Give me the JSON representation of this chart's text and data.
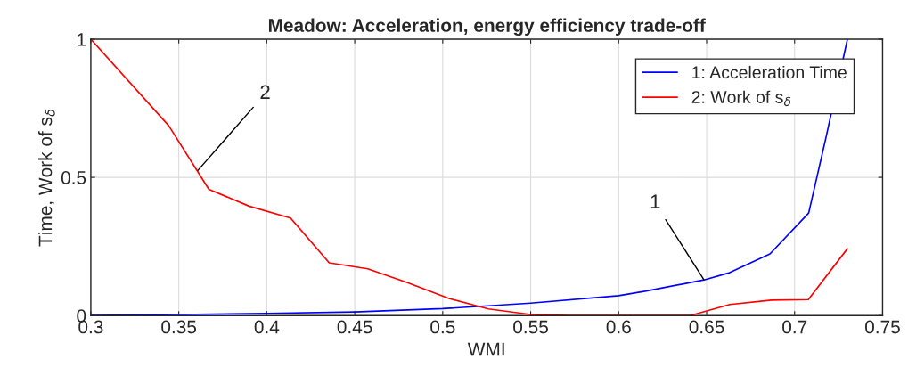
{
  "chart_data": {
    "type": "line",
    "title": "Meadow: Acceleration, energy efficiency trade-off",
    "xlabel": "WMI",
    "ylabel": "Time, Work of s$_{δ}$",
    "series": [
      {
        "name": "1: Acceleration Time",
        "color": "#0000ff",
        "x": [
          0.3,
          0.35,
          0.4,
          0.45,
          0.5,
          0.55,
          0.6,
          0.615,
          0.6485,
          0.663,
          0.686,
          0.708,
          0.718,
          0.73
        ],
        "values": [
          0.0,
          0.004,
          0.008,
          0.013,
          0.025,
          0.045,
          0.072,
          0.088,
          0.129,
          0.155,
          0.223,
          0.371,
          0.649,
          1.0
        ]
      },
      {
        "name": "2: Work of s$_{δ}$",
        "color": "#ff0000",
        "x": [
          0.3,
          0.3443,
          0.3671,
          0.3899,
          0.4135,
          0.4355,
          0.4574,
          0.48,
          0.5039,
          0.526,
          0.55,
          0.573,
          0.596,
          0.618,
          0.6405,
          0.6632,
          0.6868,
          0.7078,
          0.73
        ],
        "values": [
          1.0,
          0.687,
          0.457,
          0.396,
          0.353,
          0.191,
          0.169,
          0.119,
          0.061,
          0.024,
          0.004,
          0.0,
          0.0,
          0.0,
          0.0,
          0.04,
          0.056,
          0.058,
          0.242
        ]
      }
    ],
    "annotations": [
      {
        "text": "2",
        "x": 0.3608,
        "y": 0.525
      },
      {
        "text": "1",
        "x": 0.6485,
        "y": 0.129
      }
    ],
    "xlim": [
      0.3,
      0.75
    ],
    "xticks": [
      0.3,
      0.35,
      0.4,
      0.45,
      0.5,
      0.55,
      0.6,
      0.65,
      0.7,
      0.75
    ],
    "ylim": [
      0,
      1
    ],
    "yticks": [
      0,
      0.5,
      1
    ],
    "grid": true,
    "legend": "top right",
    "marker": "none",
    "line_style": "solid"
  }
}
